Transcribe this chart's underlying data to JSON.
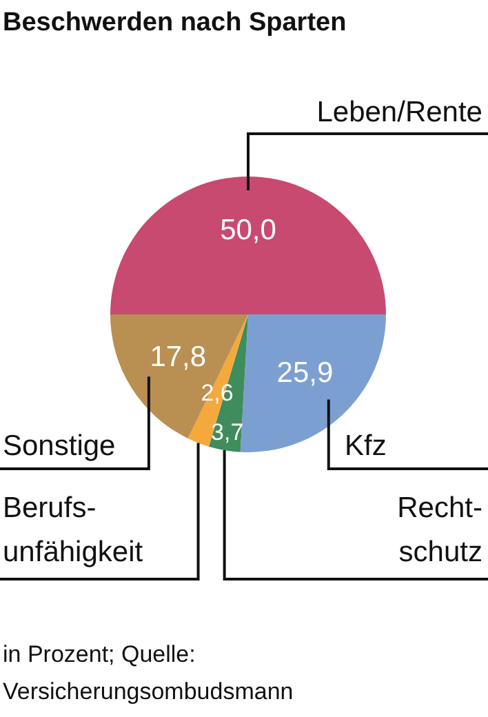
{
  "chart_data": {
    "type": "pie",
    "title": "Beschwerden nach Sparten",
    "categories": [
      "Leben/Rente",
      "Kfz",
      "Recht-schutz",
      "Berufs-unfähigkeit",
      "Sonstige"
    ],
    "values": [
      50.0,
      25.9,
      3.7,
      2.6,
      17.8
    ],
    "value_labels": [
      "50,0",
      "25,9",
      "3,7",
      "2,6",
      "17,8"
    ],
    "colors": [
      "#c84a70",
      "#7c9fd2",
      "#3f8c5c",
      "#f5a93c",
      "#b98f52"
    ],
    "annotations": [
      "in Prozent; Quelle: Versicherungsombudsmann"
    ]
  }
}
